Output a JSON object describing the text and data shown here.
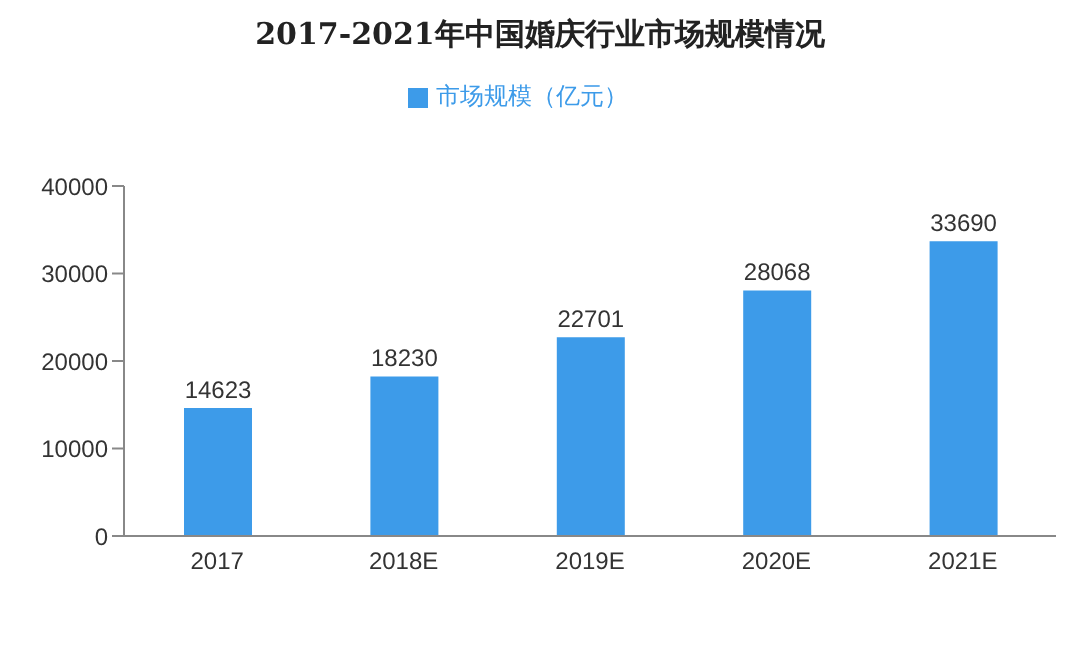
{
  "chart_data": {
    "type": "bar",
    "title": "2017-2021年中国婚庆行业市场规模情况",
    "categories": [
      "2017",
      "2018E",
      "2019E",
      "2020E",
      "2021E"
    ],
    "series": [
      {
        "name": "市场规模（亿元）",
        "color": "#3d9be9",
        "values": [
          14623,
          18230,
          22701,
          28068,
          33690
        ]
      }
    ],
    "ylim": [
      0,
      40000
    ],
    "yticks": [
      0,
      10000,
      20000,
      30000,
      40000
    ],
    "grid": false,
    "legend": "top",
    "data_labels": true
  }
}
